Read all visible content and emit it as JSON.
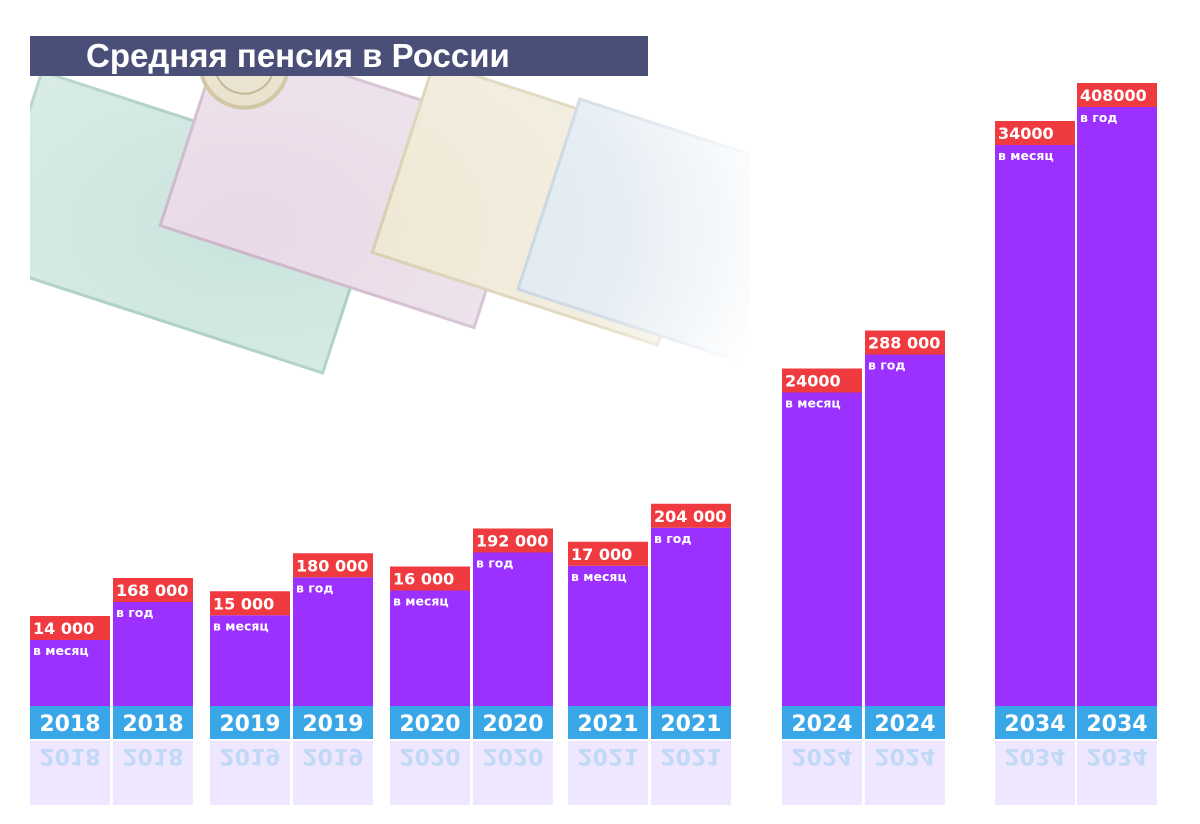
{
  "colors": {
    "title_bg": "#4a4f78",
    "title_text": "#ffffff",
    "bar": "#9b30ff",
    "label_bg": "#ef3a3f",
    "year_band": "#39a6e8",
    "reflection": "#d9c9ff"
  },
  "background_image": "ruble-banknotes",
  "chart_data": {
    "type": "bar",
    "title": "Средняя пенсия в России",
    "xlabel": "",
    "ylabel": "",
    "bars": [
      {
        "year": "2018",
        "value": 14000,
        "label": "14 000",
        "unit": "в месяц"
      },
      {
        "year": "2018",
        "value": 168000,
        "label": "168 000",
        "unit": "в год"
      },
      {
        "year": "2019",
        "value": 15000,
        "label": "15 000",
        "unit": "в месяц"
      },
      {
        "year": "2019",
        "value": 180000,
        "label": "180 000",
        "unit": "в год"
      },
      {
        "year": "2020",
        "value": 16000,
        "label": "16 000",
        "unit": "в месяц"
      },
      {
        "year": "2020",
        "value": 192000,
        "label": "192 000",
        "unit": "в год"
      },
      {
        "year": "2021",
        "value": 17000,
        "label": "17 000",
        "unit": "в месяц"
      },
      {
        "year": "2021",
        "value": 204000,
        "label": "204 000",
        "unit": "в год"
      },
      {
        "year": "2024",
        "value": 24000,
        "label": "24000",
        "unit": "в месяц"
      },
      {
        "year": "2024",
        "value": 288000,
        "label": "288 000",
        "unit": "в год"
      },
      {
        "year": "2034",
        "value": 34000,
        "label": "34000",
        "unit": "в месяц"
      },
      {
        "year": "2034",
        "value": 408000,
        "label": "408000",
        "unit": "в год"
      }
    ]
  }
}
